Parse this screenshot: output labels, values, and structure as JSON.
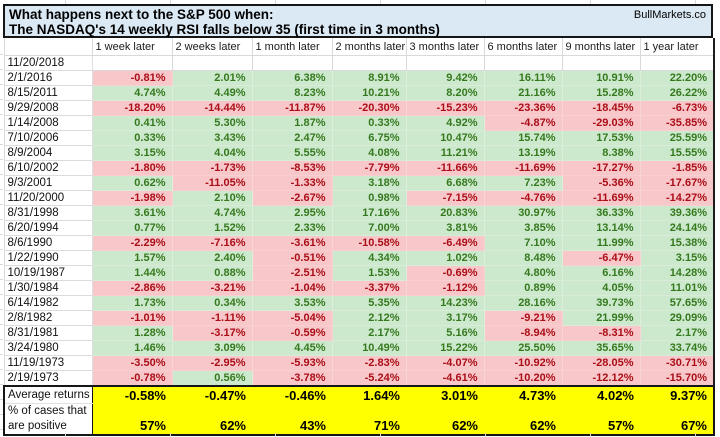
{
  "header": {
    "line1": "What happens next to the S&P 500 when:",
    "line2": "The NASDAQ's 14 weekly RSI falls below 35 (first time in 3 months)",
    "brand": "BullMarkets.co"
  },
  "colors": {
    "title_bg": "#dbe9f4",
    "positive_bg": "#cde9cd",
    "positive_text": "#35791f",
    "negative_bg": "#f8c7ca",
    "negative_text": "#aa0e17",
    "summary_bg": "#ffff00"
  },
  "chart_data": {
    "type": "table",
    "title": "What happens next to the S&P 500 when: The NASDAQ's 14 weekly RSI falls below 35 (first time in 3 months)",
    "columns": [
      "1 week later",
      "2 weeks later",
      "1 month later",
      "2 months later",
      "3 months later",
      "6 months later",
      "9 months later",
      "1 year later"
    ],
    "rows": [
      {
        "date": "11/20/2018",
        "values": [
          "",
          "",
          "",
          "",
          "",
          "",
          "",
          ""
        ]
      },
      {
        "date": "2/1/2016",
        "values": [
          "-0.81%",
          "2.01%",
          "6.38%",
          "8.91%",
          "9.42%",
          "16.11%",
          "10.91%",
          "22.20%"
        ]
      },
      {
        "date": "8/15/2011",
        "values": [
          "4.74%",
          "4.49%",
          "8.23%",
          "10.21%",
          "8.20%",
          "21.16%",
          "15.28%",
          "26.22%"
        ]
      },
      {
        "date": "9/29/2008",
        "values": [
          "-18.20%",
          "-14.44%",
          "-11.87%",
          "-20.30%",
          "-15.23%",
          "-23.36%",
          "-18.45%",
          "-6.73%"
        ]
      },
      {
        "date": "1/14/2008",
        "values": [
          "0.41%",
          "5.30%",
          "1.87%",
          "0.33%",
          "4.92%",
          "-4.87%",
          "-29.03%",
          "-35.85%"
        ]
      },
      {
        "date": "7/10/2006",
        "values": [
          "0.33%",
          "3.43%",
          "2.47%",
          "6.75%",
          "10.47%",
          "15.74%",
          "17.53%",
          "25.59%"
        ]
      },
      {
        "date": "8/9/2004",
        "values": [
          "3.15%",
          "4.04%",
          "5.55%",
          "4.08%",
          "11.21%",
          "13.19%",
          "8.38%",
          "15.55%"
        ]
      },
      {
        "date": "6/10/2002",
        "values": [
          "-1.80%",
          "-1.73%",
          "-8.53%",
          "-7.79%",
          "-11.66%",
          "-11.69%",
          "-17.27%",
          "-1.85%"
        ]
      },
      {
        "date": "9/3/2001",
        "values": [
          "0.62%",
          "-11.05%",
          "-1.33%",
          "3.18%",
          "6.68%",
          "7.23%",
          "-5.36%",
          "-17.67%"
        ]
      },
      {
        "date": "11/20/2000",
        "values": [
          "-1.98%",
          "2.10%",
          "-2.67%",
          "0.98%",
          "-7.15%",
          "-4.76%",
          "-11.69%",
          "-14.27%"
        ]
      },
      {
        "date": "8/31/1998",
        "values": [
          "3.61%",
          "4.74%",
          "2.95%",
          "17.16%",
          "20.83%",
          "30.97%",
          "36.33%",
          "39.36%"
        ]
      },
      {
        "date": "6/20/1994",
        "values": [
          "0.77%",
          "1.52%",
          "2.33%",
          "7.00%",
          "3.81%",
          "3.85%",
          "13.14%",
          "24.14%"
        ]
      },
      {
        "date": "8/6/1990",
        "values": [
          "-2.29%",
          "-7.16%",
          "-3.61%",
          "-10.58%",
          "-6.49%",
          "7.10%",
          "11.99%",
          "15.38%"
        ]
      },
      {
        "date": "1/22/1990",
        "values": [
          "1.57%",
          "2.40%",
          "-0.51%",
          "4.34%",
          "1.02%",
          "8.48%",
          "-6.47%",
          "3.15%"
        ]
      },
      {
        "date": "10/19/1987",
        "values": [
          "1.44%",
          "0.88%",
          "-2.51%",
          "1.53%",
          "-0.69%",
          "4.80%",
          "6.16%",
          "14.28%"
        ]
      },
      {
        "date": "1/30/1984",
        "values": [
          "-2.86%",
          "-3.21%",
          "-1.04%",
          "-3.37%",
          "-1.12%",
          "0.89%",
          "4.05%",
          "11.01%"
        ]
      },
      {
        "date": "6/14/1982",
        "values": [
          "1.73%",
          "0.34%",
          "3.53%",
          "5.35%",
          "14.23%",
          "28.16%",
          "39.73%",
          "57.65%"
        ]
      },
      {
        "date": "2/8/1982",
        "values": [
          "-1.01%",
          "-1.11%",
          "-5.04%",
          "2.12%",
          "3.17%",
          "-9.21%",
          "21.99%",
          "29.09%"
        ]
      },
      {
        "date": "8/31/1981",
        "values": [
          "1.28%",
          "-3.17%",
          "-0.59%",
          "2.17%",
          "5.16%",
          "-8.94%",
          "-8.31%",
          "2.17%"
        ]
      },
      {
        "date": "3/24/1980",
        "values": [
          "1.46%",
          "3.09%",
          "4.45%",
          "10.49%",
          "15.22%",
          "25.50%",
          "35.65%",
          "33.74%"
        ]
      },
      {
        "date": "11/19/1973",
        "values": [
          "-3.50%",
          "-2.95%",
          "-5.93%",
          "-2.83%",
          "-4.07%",
          "-10.92%",
          "-28.05%",
          "-30.71%"
        ]
      },
      {
        "date": "2/19/1973",
        "values": [
          "-0.78%",
          "0.56%",
          "-3.78%",
          "-5.24%",
          "-4.61%",
          "-10.20%",
          "-12.12%",
          "-15.70%"
        ]
      }
    ],
    "summary": {
      "avg_label": "Average returns",
      "pct_label_line1": "% of cases that",
      "pct_label_line2": "are positive",
      "averages": [
        "-0.58%",
        "-0.47%",
        "-0.46%",
        "1.64%",
        "3.01%",
        "4.73%",
        "4.02%",
        "9.37%"
      ],
      "percents": [
        "57%",
        "62%",
        "43%",
        "71%",
        "62%",
        "62%",
        "57%",
        "67%"
      ]
    }
  }
}
